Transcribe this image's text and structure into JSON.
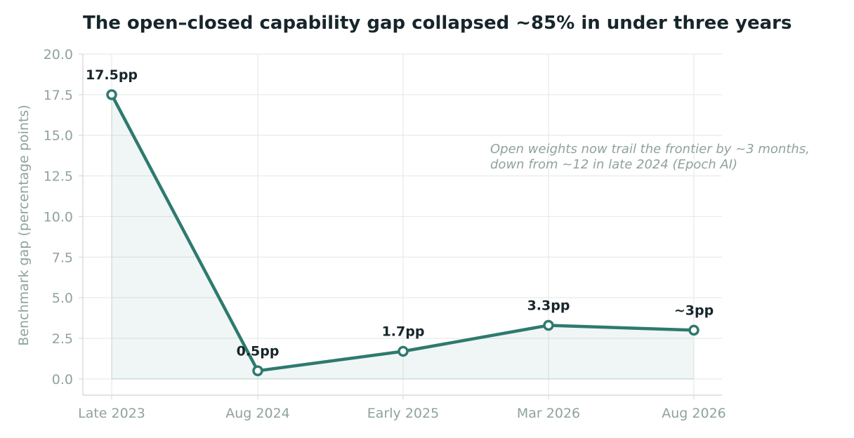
{
  "chart_data": {
    "type": "line",
    "title": "The open–closed capability gap collapsed ~85% in under three years",
    "xlabel": "",
    "ylabel": "Benchmark gap (percentage points)",
    "categories": [
      "Late 2023",
      "Aug 2024",
      "Early 2025",
      "Mar 2026",
      "Aug 2026"
    ],
    "series": [
      {
        "values": [
          17.5,
          0.5,
          1.7,
          3.3,
          3.0
        ],
        "labels": [
          "17.5pp",
          "0.5pp",
          "1.7pp",
          "3.3pp",
          "~3pp"
        ]
      }
    ],
    "ylim": [
      -1,
      20
    ],
    "yticks": [
      "0.0",
      "2.5",
      "5.0",
      "7.5",
      "10.0",
      "12.5",
      "15.0",
      "17.5",
      "20.0"
    ],
    "grid": true,
    "legend": "none",
    "annotation": [
      "Open weights now trail the frontier by ~3 months,",
      "down from ~12 in late 2024 (Epoch AI)"
    ],
    "colors": {
      "line": "#2e7a6e",
      "fill": "#2e7a6e",
      "grid": "#e6ebe9",
      "axis": "#d5dcd9",
      "tick": "#8fa39b",
      "text": "#17262a"
    }
  }
}
